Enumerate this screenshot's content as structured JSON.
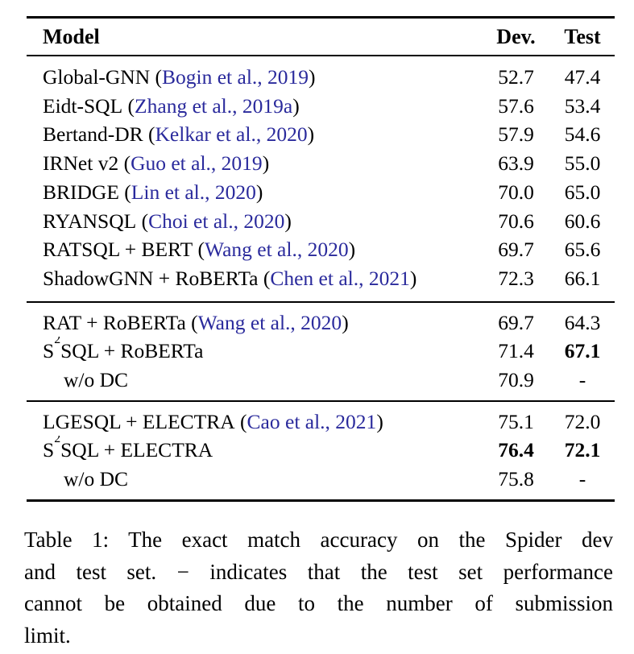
{
  "colors": {
    "citation": "#2a2a9c",
    "text": "#000000",
    "rule": "#000000"
  },
  "table": {
    "header": {
      "model": "Model",
      "dev": "Dev.",
      "test": "Test"
    },
    "sections": [
      {
        "rows": [
          {
            "pre": "Global-GNN",
            "sup": "",
            "post": "",
            "cite_open": " (",
            "cite": "Bogin et al., 2019",
            "cite_close": ")",
            "dev": "52.7",
            "test": "47.4"
          },
          {
            "pre": "Eidt-SQL",
            "sup": "",
            "post": "",
            "cite_open": " (",
            "cite": "Zhang et al., 2019a",
            "cite_close": ")",
            "dev": "57.6",
            "test": "53.4"
          },
          {
            "pre": "Bertand-DR",
            "sup": "",
            "post": "",
            "cite_open": " (",
            "cite": "Kelkar et al., 2020",
            "cite_close": ")",
            "dev": "57.9",
            "test": "54.6"
          },
          {
            "pre": "IRNet v2",
            "sup": "",
            "post": "",
            "cite_open": " (",
            "cite": "Guo et al., 2019",
            "cite_close": ")",
            "dev": "63.9",
            "test": "55.0"
          },
          {
            "pre": "BRIDGE",
            "sup": "",
            "post": "",
            "cite_open": " (",
            "cite": "Lin et al., 2020",
            "cite_close": ")",
            "dev": "70.0",
            "test": "65.0"
          },
          {
            "pre": "RYANSQL",
            "sup": "",
            "post": "",
            "cite_open": " (",
            "cite": "Choi et al., 2020",
            "cite_close": ")",
            "dev": "70.6",
            "test": "60.6"
          },
          {
            "pre": "RATSQL + BERT",
            "sup": "",
            "post": "",
            "cite_open": " (",
            "cite": "Wang et al., 2020",
            "cite_close": ")",
            "dev": "69.7",
            "test": "65.6"
          },
          {
            "pre": "ShadowGNN + RoBERTa",
            "sup": "",
            "post": "",
            "cite_open": " (",
            "cite": "Chen et al., 2021",
            "cite_close": ")",
            "dev": "72.3",
            "test": "66.1"
          }
        ]
      },
      {
        "rows": [
          {
            "pre": "RAT + RoBERTa",
            "sup": "",
            "post": "",
            "cite_open": " (",
            "cite": "Wang et al., 2020",
            "cite_close": ")",
            "dev": "69.7",
            "test": "64.3"
          },
          {
            "pre": "S",
            "sup": "2",
            "post": "SQL + RoBERTa",
            "cite_open": "",
            "cite": "",
            "cite_close": "",
            "dev": "71.4",
            "test": "67.1"
          },
          {
            "pre": "w/o DC",
            "sup": "",
            "post": "",
            "cite_open": "",
            "cite": "",
            "cite_close": "",
            "dev": "70.9",
            "test": "-"
          }
        ]
      },
      {
        "rows": [
          {
            "pre": "LGESQL + ELECTRA",
            "sup": "",
            "post": "",
            "cite_open": " (",
            "cite": "Cao et al., 2021",
            "cite_close": ")",
            "dev": "75.1",
            "test": "72.0"
          },
          {
            "pre": "S",
            "sup": "2",
            "post": "SQL + ELECTRA",
            "cite_open": "",
            "cite": "",
            "cite_close": "",
            "dev": "76.4",
            "test": "72.1"
          },
          {
            "pre": "w/o DC",
            "sup": "",
            "post": "",
            "cite_open": "",
            "cite": "",
            "cite_close": "",
            "dev": "75.8",
            "test": "-"
          }
        ]
      }
    ]
  },
  "caption": {
    "lines": [
      "Table 1: The exact match accuracy on the Spider dev",
      "and test set. − indicates that the test set performance",
      "cannot be obtained due to the number of submission",
      "limit."
    ]
  }
}
